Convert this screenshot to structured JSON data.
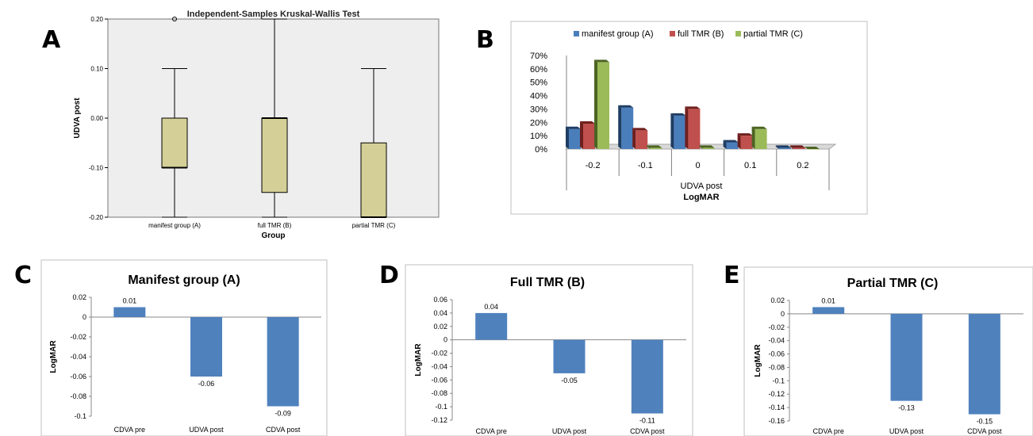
{
  "panels": {
    "a": "A",
    "b": "B",
    "c": "C",
    "d": "D",
    "e": "E"
  },
  "chart_data": [
    {
      "panel": "A",
      "type": "box",
      "title": "Independent-Samples Kruskal-Wallis Test",
      "xlabel": "Group",
      "ylabel": "UDVA post",
      "ylim": [
        -0.2,
        0.2
      ],
      "yticks": [
        0.2,
        0.1,
        0.0,
        -0.1,
        -0.2
      ],
      "ytick_labels": [
        "0.20",
        "0.10",
        "0.00",
        "-0.10",
        "-0.20"
      ],
      "categories": [
        "manifest group (A)",
        "full TMR (B)",
        "partial TMR (C)"
      ],
      "boxes": [
        {
          "min": -0.2,
          "q1": -0.1,
          "median": -0.1,
          "q3": 0.0,
          "max": 0.1,
          "outliers": [
            0.2
          ]
        },
        {
          "min": -0.2,
          "q1": -0.15,
          "median": 0.0,
          "q3": 0.0,
          "max": 0.2,
          "outliers": []
        },
        {
          "min": -0.2,
          "q1": -0.2,
          "median": -0.2,
          "q3": -0.05,
          "max": 0.1,
          "outliers": []
        }
      ],
      "colors": {
        "box": "#d4cf96",
        "plot_bg": "#eeeeee"
      }
    },
    {
      "panel": "B",
      "type": "bar",
      "title": "",
      "xlabel": "UDVA post",
      "xlabel2": "LogMAR",
      "ylim": [
        0,
        70
      ],
      "yticks": [
        0,
        10,
        20,
        30,
        40,
        50,
        60,
        70
      ],
      "ytick_labels": [
        "0%",
        "10%",
        "20%",
        "30%",
        "40%",
        "50%",
        "60%",
        "70%"
      ],
      "categories": [
        "-0.2",
        "-0.1",
        "0",
        "0.1",
        "0.2"
      ],
      "series": [
        {
          "name": "manifest group (A)",
          "values": [
            15,
            31,
            25,
            5,
            1
          ],
          "color": "#4a7ebb",
          "dark": "#1f3d63"
        },
        {
          "name": "full TMR (B)",
          "values": [
            19,
            14,
            30,
            10,
            1
          ],
          "color": "#c0504d",
          "dark": "#6e1f1d"
        },
        {
          "name": "partial TMR (C)",
          "values": [
            65,
            1,
            1,
            15,
            0
          ],
          "color": "#9bbb59",
          "dark": "#4d6324"
        }
      ],
      "legend": "top"
    },
    {
      "panel": "C",
      "type": "bar",
      "title": "Manifest group (A)",
      "ylabel": "LogMAR",
      "ylim": [
        -0.1,
        0.02
      ],
      "yticks": [
        0.02,
        0,
        -0.02,
        -0.04,
        -0.06,
        -0.08,
        -0.1
      ],
      "ytick_labels": [
        "0.02",
        "0",
        "-0.02",
        "-0.04",
        "-0.06",
        "-0.08",
        "-0.1"
      ],
      "categories": [
        "CDVA pre",
        "UDVA post",
        "CDVA post"
      ],
      "values": [
        0.01,
        -0.06,
        -0.09
      ],
      "data_labels": [
        "0.01",
        "-0.06",
        "-0.09"
      ],
      "color": "#4f81bd"
    },
    {
      "panel": "D",
      "type": "bar",
      "title": "Full TMR (B)",
      "ylabel": "LogMAR",
      "ylim": [
        -0.12,
        0.06
      ],
      "yticks": [
        0.06,
        0.04,
        0.02,
        0,
        -0.02,
        -0.04,
        -0.06,
        -0.08,
        -0.1,
        -0.12
      ],
      "ytick_labels": [
        "0.06",
        "0.04",
        "0.02",
        "0",
        "-0.02",
        "-0.04",
        "-0.06",
        "-0.08",
        "-0.1",
        "-0.12"
      ],
      "categories": [
        "CDVA pre",
        "UDVA post",
        "CDVA post"
      ],
      "values": [
        0.04,
        -0.05,
        -0.11
      ],
      "data_labels": [
        "0.04",
        "-0.05",
        "-0.11"
      ],
      "color": "#4f81bd"
    },
    {
      "panel": "E",
      "type": "bar",
      "title": "Partial TMR (C)",
      "ylabel": "LogMAR",
      "ylim": [
        -0.16,
        0.02
      ],
      "yticks": [
        0.02,
        0,
        -0.02,
        -0.04,
        -0.06,
        -0.08,
        -0.1,
        -0.12,
        -0.14,
        -0.16
      ],
      "ytick_labels": [
        "0.02",
        "0",
        "-0.02",
        "-0.04",
        "-0.06",
        "-0.08",
        "-0.1",
        "-0.12",
        "-0.14",
        "-0.16"
      ],
      "categories": [
        "CDVA pre",
        "UDVA post",
        "CDVA post"
      ],
      "values": [
        0.01,
        -0.13,
        -0.15
      ],
      "data_labels": [
        "0.01",
        "-0.13",
        "-0.15"
      ],
      "color": "#4f81bd"
    }
  ]
}
